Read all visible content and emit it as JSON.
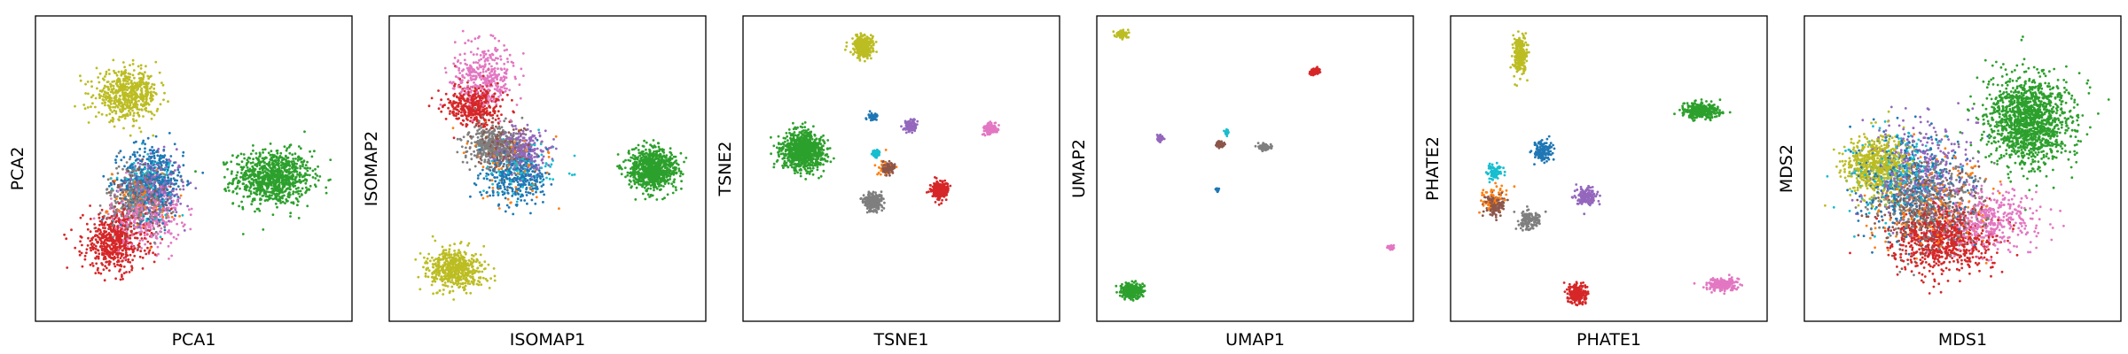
{
  "colors": {
    "blue": "#1f77b4",
    "orange": "#ff7f0e",
    "green": "#2ca02c",
    "red": "#d62728",
    "purple": "#9467bd",
    "brown": "#8c564b",
    "pink": "#e377c2",
    "gray": "#7f7f7f",
    "olive": "#bcbd22",
    "cyan": "#17becf"
  },
  "chart_data": [
    {
      "type": "scatter",
      "title": "",
      "xlabel": "PCA1",
      "ylabel": "PCA2",
      "xlim": [
        0,
        100
      ],
      "ylim": [
        0,
        100
      ],
      "grid": false,
      "legend": "none",
      "clusters": [
        {
          "color": "green",
          "x": 75,
          "y": 47,
          "sx": 11,
          "sy": 8,
          "n": 900
        },
        {
          "color": "blue",
          "x": 37,
          "y": 46,
          "sx": 9,
          "sy": 11,
          "n": 450
        },
        {
          "color": "purple",
          "x": 38,
          "y": 44,
          "sx": 8,
          "sy": 9,
          "n": 250
        },
        {
          "color": "pink",
          "x": 35,
          "y": 35,
          "sx": 10,
          "sy": 10,
          "n": 320
        },
        {
          "color": "gray",
          "x": 32,
          "y": 40,
          "sx": 9,
          "sy": 10,
          "n": 280
        },
        {
          "color": "red",
          "x": 25,
          "y": 26,
          "sx": 9,
          "sy": 9,
          "n": 550
        },
        {
          "color": "olive",
          "x": 29,
          "y": 74,
          "sx": 9,
          "sy": 7,
          "n": 550
        },
        {
          "color": "cyan",
          "x": 35,
          "y": 45,
          "sx": 8,
          "sy": 9,
          "n": 120
        },
        {
          "color": "orange",
          "x": 33,
          "y": 40,
          "sx": 9,
          "sy": 9,
          "n": 90
        },
        {
          "color": "brown",
          "x": 34,
          "y": 41,
          "sx": 8,
          "sy": 9,
          "n": 110
        }
      ]
    },
    {
      "type": "scatter",
      "title": "",
      "xlabel": "ISOMAP1",
      "ylabel": "ISOMAP2",
      "xlim": [
        0,
        100
      ],
      "ylim": [
        0,
        100
      ],
      "grid": false,
      "legend": "none",
      "clusters": [
        {
          "color": "green",
          "x": 83,
          "y": 50,
          "sx": 7,
          "sy": 6,
          "n": 850
        },
        {
          "color": "pink",
          "x": 30,
          "y": 80,
          "sx": 9,
          "sy": 9,
          "n": 350
        },
        {
          "color": "red",
          "x": 27,
          "y": 71,
          "sx": 8,
          "sy": 6,
          "n": 420
        },
        {
          "color": "gray",
          "x": 33,
          "y": 58,
          "sx": 8,
          "sy": 6,
          "n": 380
        },
        {
          "color": "purple",
          "x": 42,
          "y": 56,
          "sx": 7,
          "sy": 6,
          "n": 260
        },
        {
          "color": "blue",
          "x": 40,
          "y": 47,
          "sx": 9,
          "sy": 8,
          "n": 320
        },
        {
          "color": "brown",
          "x": 35,
          "y": 57,
          "sx": 7,
          "sy": 6,
          "n": 160
        },
        {
          "color": "olive",
          "x": 21,
          "y": 17,
          "sx": 8,
          "sy": 6,
          "n": 550
        },
        {
          "color": "cyan",
          "x": 42,
          "y": 50,
          "sx": 10,
          "sy": 9,
          "n": 100
        },
        {
          "color": "orange",
          "x": 38,
          "y": 52,
          "sx": 12,
          "sy": 12,
          "n": 70
        }
      ]
    },
    {
      "type": "scatter",
      "title": "",
      "xlabel": "TSNE1",
      "ylabel": "TSNE2",
      "xlim": [
        0,
        100
      ],
      "ylim": [
        0,
        100
      ],
      "grid": false,
      "legend": "none",
      "clusters": [
        {
          "color": "green",
          "x": 19,
          "y": 56,
          "sx": 6,
          "sy": 5.5,
          "n": 900
        },
        {
          "color": "olive",
          "x": 38,
          "y": 90,
          "sx": 2.6,
          "sy": 2.8,
          "n": 400
        },
        {
          "color": "blue",
          "x": 41,
          "y": 67,
          "sx": 1.3,
          "sy": 1.2,
          "n": 80
        },
        {
          "color": "purple",
          "x": 53,
          "y": 64,
          "sx": 1.6,
          "sy": 1.6,
          "n": 130
        },
        {
          "color": "pink",
          "x": 78,
          "y": 63,
          "sx": 1.7,
          "sy": 1.5,
          "n": 130
        },
        {
          "color": "cyan",
          "x": 42,
          "y": 55,
          "sx": 1.2,
          "sy": 1.2,
          "n": 70
        },
        {
          "color": "brown",
          "x": 46,
          "y": 50,
          "sx": 1.7,
          "sy": 1.7,
          "n": 110
        },
        {
          "color": "red",
          "x": 62,
          "y": 43,
          "sx": 2.3,
          "sy": 2.5,
          "n": 280
        },
        {
          "color": "gray",
          "x": 41,
          "y": 39,
          "sx": 2.4,
          "sy": 2.4,
          "n": 300
        },
        {
          "color": "orange",
          "x": 44,
          "y": 50,
          "sx": 3,
          "sy": 4,
          "n": 20
        }
      ]
    },
    {
      "type": "scatter",
      "title": "",
      "xlabel": "UMAP1",
      "ylabel": "UMAP2",
      "xlim": [
        0,
        100
      ],
      "ylim": [
        0,
        100
      ],
      "grid": false,
      "legend": "none",
      "clusters": [
        {
          "color": "olive",
          "x": 8,
          "y": 94,
          "sx": 1.6,
          "sy": 1,
          "n": 120
        },
        {
          "color": "red",
          "x": 69,
          "y": 82,
          "sx": 1.4,
          "sy": 1,
          "n": 90
        },
        {
          "color": "purple",
          "x": 20,
          "y": 60,
          "sx": 1,
          "sy": 0.9,
          "n": 50
        },
        {
          "color": "brown",
          "x": 39,
          "y": 58,
          "sx": 1.3,
          "sy": 0.8,
          "n": 60
        },
        {
          "color": "cyan",
          "x": 41,
          "y": 62,
          "sx": 0.7,
          "sy": 0.8,
          "n": 25
        },
        {
          "color": "gray",
          "x": 53,
          "y": 57,
          "sx": 1.8,
          "sy": 1,
          "n": 90
        },
        {
          "color": "blue",
          "x": 38,
          "y": 43,
          "sx": 0.5,
          "sy": 0.6,
          "n": 20
        },
        {
          "color": "pink",
          "x": 93,
          "y": 24,
          "sx": 0.9,
          "sy": 0.8,
          "n": 45
        },
        {
          "color": "green",
          "x": 11,
          "y": 10,
          "sx": 2.8,
          "sy": 2,
          "n": 350
        }
      ]
    },
    {
      "type": "scatter",
      "title": "",
      "xlabel": "PHATE1",
      "ylabel": "PHATE2",
      "xlim": [
        0,
        100
      ],
      "ylim": [
        0,
        100
      ],
      "grid": false,
      "legend": "none",
      "clusters": [
        {
          "color": "olive",
          "x": 22,
          "y": 87,
          "sx": 2,
          "sy": 6,
          "n": 250
        },
        {
          "color": "green",
          "x": 79,
          "y": 69,
          "sx": 5,
          "sy": 2.5,
          "n": 320
        },
        {
          "color": "blue",
          "x": 29,
          "y": 56,
          "sx": 3,
          "sy": 3,
          "n": 140
        },
        {
          "color": "cyan",
          "x": 14,
          "y": 49,
          "sx": 2,
          "sy": 2.2,
          "n": 80
        },
        {
          "color": "purple",
          "x": 43,
          "y": 41,
          "sx": 3,
          "sy": 3,
          "n": 160
        },
        {
          "color": "brown",
          "x": 14,
          "y": 38,
          "sx": 2.4,
          "sy": 3,
          "n": 120
        },
        {
          "color": "gray",
          "x": 25,
          "y": 33,
          "sx": 3,
          "sy": 3,
          "n": 140
        },
        {
          "color": "orange",
          "x": 13,
          "y": 40,
          "sx": 4,
          "sy": 5,
          "n": 60
        },
        {
          "color": "red",
          "x": 40,
          "y": 9,
          "sx": 2.8,
          "sy": 2.5,
          "n": 200
        },
        {
          "color": "pink",
          "x": 86,
          "y": 12,
          "sx": 4.5,
          "sy": 2,
          "n": 200
        }
      ]
    },
    {
      "type": "scatter",
      "title": "",
      "xlabel": "MDS1",
      "ylabel": "MDS2",
      "xlim": [
        0,
        100
      ],
      "ylim": [
        0,
        100
      ],
      "grid": false,
      "legend": "none",
      "clusters": [
        {
          "color": "green",
          "x": 71,
          "y": 66,
          "sx": 12,
          "sy": 13,
          "n": 1400
        },
        {
          "color": "olive",
          "x": 23,
          "y": 51,
          "sx": 9,
          "sy": 9,
          "n": 600
        },
        {
          "color": "red",
          "x": 44,
          "y": 26,
          "sx": 14,
          "sy": 10,
          "n": 700
        },
        {
          "color": "blue",
          "x": 33,
          "y": 45,
          "sx": 15,
          "sy": 15,
          "n": 350
        },
        {
          "color": "pink",
          "x": 58,
          "y": 33,
          "sx": 14,
          "sy": 9,
          "n": 400
        },
        {
          "color": "purple",
          "x": 36,
          "y": 50,
          "sx": 14,
          "sy": 15,
          "n": 350
        },
        {
          "color": "gray",
          "x": 40,
          "y": 40,
          "sx": 16,
          "sy": 14,
          "n": 380
        },
        {
          "color": "brown",
          "x": 38,
          "y": 35,
          "sx": 15,
          "sy": 12,
          "n": 280
        },
        {
          "color": "cyan",
          "x": 30,
          "y": 48,
          "sx": 14,
          "sy": 14,
          "n": 200
        },
        {
          "color": "orange",
          "x": 40,
          "y": 38,
          "sx": 16,
          "sy": 14,
          "n": 200
        }
      ]
    }
  ]
}
